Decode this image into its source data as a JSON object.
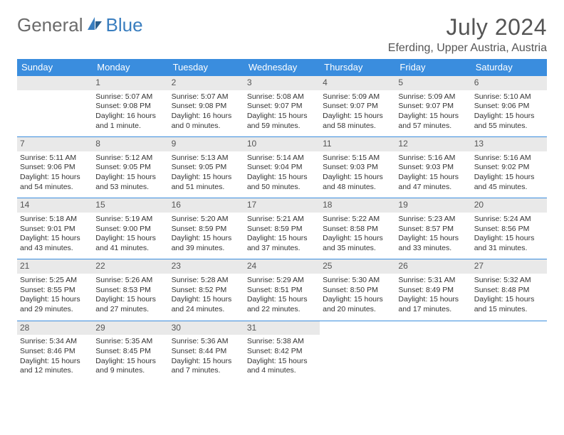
{
  "brand": {
    "part1": "General",
    "part2": "Blue"
  },
  "title": {
    "month": "July 2024",
    "location": "Eferding, Upper Austria, Austria"
  },
  "colors": {
    "header_bg": "#3a8dde",
    "header_text": "#ffffff",
    "daynum_bg": "#e9e9e9",
    "rule": "#3a8dde",
    "brand_gray": "#6b6b6b",
    "brand_blue": "#3a7ebf"
  },
  "columns": [
    "Sunday",
    "Monday",
    "Tuesday",
    "Wednesday",
    "Thursday",
    "Friday",
    "Saturday"
  ],
  "weeks": [
    [
      null,
      {
        "n": "1",
        "sr": "5:07 AM",
        "ss": "9:08 PM",
        "dl": "16 hours and 1 minute."
      },
      {
        "n": "2",
        "sr": "5:07 AM",
        "ss": "9:08 PM",
        "dl": "16 hours and 0 minutes."
      },
      {
        "n": "3",
        "sr": "5:08 AM",
        "ss": "9:07 PM",
        "dl": "15 hours and 59 minutes."
      },
      {
        "n": "4",
        "sr": "5:09 AM",
        "ss": "9:07 PM",
        "dl": "15 hours and 58 minutes."
      },
      {
        "n": "5",
        "sr": "5:09 AM",
        "ss": "9:07 PM",
        "dl": "15 hours and 57 minutes."
      },
      {
        "n": "6",
        "sr": "5:10 AM",
        "ss": "9:06 PM",
        "dl": "15 hours and 55 minutes."
      }
    ],
    [
      {
        "n": "7",
        "sr": "5:11 AM",
        "ss": "9:06 PM",
        "dl": "15 hours and 54 minutes."
      },
      {
        "n": "8",
        "sr": "5:12 AM",
        "ss": "9:05 PM",
        "dl": "15 hours and 53 minutes."
      },
      {
        "n": "9",
        "sr": "5:13 AM",
        "ss": "9:05 PM",
        "dl": "15 hours and 51 minutes."
      },
      {
        "n": "10",
        "sr": "5:14 AM",
        "ss": "9:04 PM",
        "dl": "15 hours and 50 minutes."
      },
      {
        "n": "11",
        "sr": "5:15 AM",
        "ss": "9:03 PM",
        "dl": "15 hours and 48 minutes."
      },
      {
        "n": "12",
        "sr": "5:16 AM",
        "ss": "9:03 PM",
        "dl": "15 hours and 47 minutes."
      },
      {
        "n": "13",
        "sr": "5:16 AM",
        "ss": "9:02 PM",
        "dl": "15 hours and 45 minutes."
      }
    ],
    [
      {
        "n": "14",
        "sr": "5:18 AM",
        "ss": "9:01 PM",
        "dl": "15 hours and 43 minutes."
      },
      {
        "n": "15",
        "sr": "5:19 AM",
        "ss": "9:00 PM",
        "dl": "15 hours and 41 minutes."
      },
      {
        "n": "16",
        "sr": "5:20 AM",
        "ss": "8:59 PM",
        "dl": "15 hours and 39 minutes."
      },
      {
        "n": "17",
        "sr": "5:21 AM",
        "ss": "8:59 PM",
        "dl": "15 hours and 37 minutes."
      },
      {
        "n": "18",
        "sr": "5:22 AM",
        "ss": "8:58 PM",
        "dl": "15 hours and 35 minutes."
      },
      {
        "n": "19",
        "sr": "5:23 AM",
        "ss": "8:57 PM",
        "dl": "15 hours and 33 minutes."
      },
      {
        "n": "20",
        "sr": "5:24 AM",
        "ss": "8:56 PM",
        "dl": "15 hours and 31 minutes."
      }
    ],
    [
      {
        "n": "21",
        "sr": "5:25 AM",
        "ss": "8:55 PM",
        "dl": "15 hours and 29 minutes."
      },
      {
        "n": "22",
        "sr": "5:26 AM",
        "ss": "8:53 PM",
        "dl": "15 hours and 27 minutes."
      },
      {
        "n": "23",
        "sr": "5:28 AM",
        "ss": "8:52 PM",
        "dl": "15 hours and 24 minutes."
      },
      {
        "n": "24",
        "sr": "5:29 AM",
        "ss": "8:51 PM",
        "dl": "15 hours and 22 minutes."
      },
      {
        "n": "25",
        "sr": "5:30 AM",
        "ss": "8:50 PM",
        "dl": "15 hours and 20 minutes."
      },
      {
        "n": "26",
        "sr": "5:31 AM",
        "ss": "8:49 PM",
        "dl": "15 hours and 17 minutes."
      },
      {
        "n": "27",
        "sr": "5:32 AM",
        "ss": "8:48 PM",
        "dl": "15 hours and 15 minutes."
      }
    ],
    [
      {
        "n": "28",
        "sr": "5:34 AM",
        "ss": "8:46 PM",
        "dl": "15 hours and 12 minutes."
      },
      {
        "n": "29",
        "sr": "5:35 AM",
        "ss": "8:45 PM",
        "dl": "15 hours and 9 minutes."
      },
      {
        "n": "30",
        "sr": "5:36 AM",
        "ss": "8:44 PM",
        "dl": "15 hours and 7 minutes."
      },
      {
        "n": "31",
        "sr": "5:38 AM",
        "ss": "8:42 PM",
        "dl": "15 hours and 4 minutes."
      },
      null,
      null,
      null
    ]
  ],
  "labels": {
    "sunrise": "Sunrise:",
    "sunset": "Sunset:",
    "daylight": "Daylight:"
  }
}
